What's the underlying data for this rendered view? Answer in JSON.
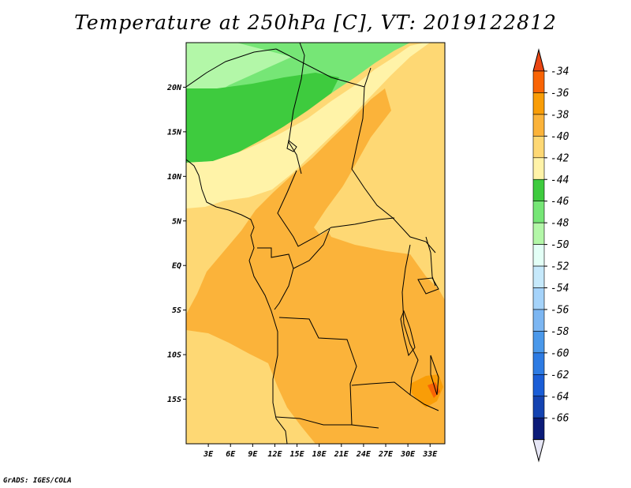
{
  "title": "Temperature at 250hPa [C], VT: 2019122812",
  "credit": "GrADS: IGES/COLA",
  "map": {
    "lon_range": [
      0,
      35
    ],
    "lat_range": [
      -20,
      25
    ],
    "lat_ticks": [
      {
        "value": 20,
        "label": "20N"
      },
      {
        "value": 15,
        "label": "15N"
      },
      {
        "value": 10,
        "label": "10N"
      },
      {
        "value": 5,
        "label": "5N"
      },
      {
        "value": 0,
        "label": "EQ"
      },
      {
        "value": -5,
        "label": "5S"
      },
      {
        "value": -10,
        "label": "10S"
      },
      {
        "value": -15,
        "label": "15S"
      }
    ],
    "lon_ticks": [
      {
        "value": 3,
        "label": "3E"
      },
      {
        "value": 6,
        "label": "6E"
      },
      {
        "value": 9,
        "label": "9E"
      },
      {
        "value": 12,
        "label": "12E"
      },
      {
        "value": 15,
        "label": "15E"
      },
      {
        "value": 18,
        "label": "18E"
      },
      {
        "value": 21,
        "label": "21E"
      },
      {
        "value": 24,
        "label": "24E"
      },
      {
        "value": 27,
        "label": "27E"
      },
      {
        "value": 30,
        "label": "30E"
      },
      {
        "value": 33,
        "label": "33E"
      }
    ]
  },
  "colorbar": {
    "over_color": "#ea4613",
    "under_color": "#e6e6f5",
    "levels": [
      {
        "label": "-34",
        "color": "#f96405"
      },
      {
        "label": "-36",
        "color": "#f99d07"
      },
      {
        "label": "-38",
        "color": "#fbb33a"
      },
      {
        "label": "-40",
        "color": "#fed874"
      },
      {
        "label": "-42",
        "color": "#fff3a8"
      },
      {
        "label": "-44",
        "color": "#3ecb3e"
      },
      {
        "label": "-46",
        "color": "#76e676"
      },
      {
        "label": "-48",
        "color": "#b3f7a8"
      },
      {
        "label": "-50",
        "color": "#e3fff6"
      },
      {
        "label": "-52",
        "color": "#c6e9fb"
      },
      {
        "label": "-54",
        "color": "#a5d3fa"
      },
      {
        "label": "-56",
        "color": "#7cb6f2"
      },
      {
        "label": "-58",
        "color": "#4a98ea"
      },
      {
        "label": "-60",
        "color": "#2d7be3"
      },
      {
        "label": "-62",
        "color": "#1a5dd6"
      },
      {
        "label": "-64",
        "color": "#1443b1"
      },
      {
        "label": "-66",
        "color": "#0b1b78"
      }
    ]
  }
}
